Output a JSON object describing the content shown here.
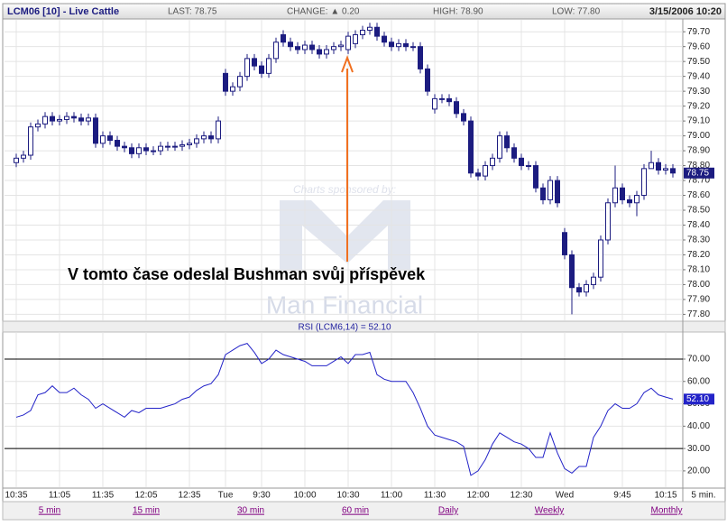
{
  "header": {
    "symbol": "LCM06 [10] - Live Cattle",
    "last": "LAST: 78.75",
    "change": "CHANGE: ▲ 0.20",
    "high": "HIGH: 78.90",
    "low": "LOW: 77.80",
    "datetime": "3/15/2006 10:20"
  },
  "chart_data": [
    {
      "type": "candlestick",
      "color": "#1c1c80",
      "grid": true,
      "last_label": "78.75",
      "annotation": "V tomto čase odeslal Bushman svůj příspěvek",
      "watermark": [
        "Charts sponsored by:",
        "Man Financial"
      ],
      "ylim": [
        77.76,
        79.78
      ],
      "yticks": [
        {
          "value": 77.8,
          "label": "77.80"
        },
        {
          "value": 77.9,
          "label": "77.90"
        },
        {
          "value": 78.0,
          "label": "78.00"
        },
        {
          "value": 78.1,
          "label": "78.10"
        },
        {
          "value": 78.2,
          "label": "78.20"
        },
        {
          "value": 78.3,
          "label": "78.30"
        },
        {
          "value": 78.4,
          "label": "78.40"
        },
        {
          "value": 78.5,
          "label": "78.50"
        },
        {
          "value": 78.6,
          "label": "78.60"
        },
        {
          "value": 78.7,
          "label": "78.70"
        },
        {
          "value": 78.8,
          "label": "78.80"
        },
        {
          "value": 78.9,
          "label": "78.90"
        },
        {
          "value": 79.0,
          "label": "79.00"
        },
        {
          "value": 79.1,
          "label": "79.10"
        },
        {
          "value": 79.2,
          "label": "79.20"
        },
        {
          "value": 79.3,
          "label": "79.30"
        },
        {
          "value": 79.4,
          "label": "79.40"
        },
        {
          "value": 79.5,
          "label": "79.50"
        },
        {
          "value": 79.6,
          "label": "79.60"
        },
        {
          "value": 79.7,
          "label": "79.70"
        }
      ],
      "open": [
        78.82,
        78.85,
        78.87,
        79.06,
        79.08,
        79.13,
        79.1,
        79.11,
        79.13,
        79.12,
        79.1,
        79.12,
        78.95,
        79.0,
        78.97,
        78.93,
        78.92,
        78.88,
        78.92,
        78.9,
        78.9,
        78.93,
        78.93,
        78.93,
        78.94,
        78.95,
        78.98,
        79.0,
        78.98,
        79.42,
        79.3,
        79.33,
        79.4,
        79.52,
        79.47,
        79.42,
        79.52,
        79.68,
        79.63,
        79.6,
        79.58,
        79.61,
        79.58,
        79.55,
        79.58,
        79.6,
        79.58,
        79.62,
        79.68,
        79.71,
        79.73,
        79.67,
        79.63,
        79.6,
        79.62,
        79.6,
        79.6,
        79.45,
        79.18,
        79.25,
        79.25,
        79.23,
        79.15,
        79.1,
        78.75,
        78.73,
        78.8,
        78.85,
        79.0,
        78.92,
        78.85,
        78.8,
        78.8,
        78.65,
        78.57,
        78.7,
        78.35,
        78.2,
        77.98,
        77.95,
        78.0,
        78.05,
        78.3,
        78.55,
        78.65,
        78.57,
        78.55,
        78.6,
        78.78,
        78.82,
        78.77,
        78.78
      ],
      "high": [
        78.88,
        78.9,
        79.09,
        79.11,
        79.16,
        79.16,
        79.14,
        79.16,
        79.16,
        79.15,
        79.15,
        79.15,
        79.03,
        79.03,
        79.0,
        78.96,
        78.95,
        78.95,
        78.95,
        78.93,
        78.96,
        78.96,
        78.96,
        78.97,
        78.98,
        79.01,
        79.03,
        79.03,
        79.13,
        79.45,
        79.36,
        79.43,
        79.55,
        79.55,
        79.5,
        79.55,
        79.66,
        79.71,
        79.66,
        79.63,
        79.64,
        79.64,
        79.61,
        79.61,
        79.63,
        79.64,
        79.7,
        79.71,
        79.74,
        79.76,
        79.76,
        79.7,
        79.66,
        79.65,
        79.65,
        79.63,
        79.63,
        79.48,
        79.28,
        79.28,
        79.28,
        79.26,
        79.18,
        79.13,
        78.78,
        78.83,
        78.88,
        79.03,
        79.03,
        78.95,
        78.88,
        78.83,
        78.83,
        78.68,
        78.73,
        78.73,
        78.38,
        78.23,
        78.01,
        78.03,
        78.08,
        78.33,
        78.58,
        78.8,
        78.68,
        78.6,
        78.63,
        78.81,
        78.9,
        78.85,
        78.81,
        78.81
      ],
      "low": [
        78.79,
        78.82,
        78.84,
        79.03,
        79.05,
        79.07,
        79.07,
        79.08,
        79.09,
        79.07,
        79.07,
        78.92,
        78.92,
        78.94,
        78.9,
        78.89,
        78.85,
        78.85,
        78.87,
        78.87,
        78.87,
        78.9,
        78.9,
        78.9,
        78.91,
        78.92,
        78.95,
        78.95,
        78.95,
        79.27,
        79.27,
        79.3,
        79.37,
        79.44,
        79.39,
        79.39,
        79.49,
        79.6,
        79.57,
        79.55,
        79.55,
        79.55,
        79.52,
        79.52,
        79.55,
        79.57,
        79.55,
        79.59,
        79.65,
        79.68,
        79.64,
        79.6,
        79.57,
        79.57,
        79.57,
        79.57,
        79.42,
        79.27,
        79.15,
        79.22,
        79.2,
        79.12,
        79.07,
        78.72,
        78.7,
        78.7,
        78.77,
        78.82,
        78.89,
        78.82,
        78.77,
        78.77,
        78.62,
        78.54,
        78.54,
        78.52,
        78.17,
        77.8,
        77.92,
        77.92,
        77.97,
        78.02,
        78.27,
        78.52,
        78.54,
        78.52,
        78.46,
        78.57,
        78.79,
        78.74,
        78.74,
        78.72
      ],
      "close": [
        78.85,
        78.87,
        79.06,
        79.08,
        79.13,
        79.1,
        79.11,
        79.13,
        79.12,
        79.1,
        79.12,
        78.95,
        79.0,
        78.97,
        78.93,
        78.92,
        78.88,
        78.92,
        78.9,
        78.9,
        78.93,
        78.93,
        78.93,
        78.94,
        78.95,
        78.98,
        79.0,
        78.98,
        79.1,
        79.3,
        79.33,
        79.4,
        79.52,
        79.47,
        79.42,
        79.52,
        79.63,
        79.63,
        79.6,
        79.58,
        79.61,
        79.58,
        79.55,
        79.58,
        79.6,
        79.61,
        79.67,
        79.68,
        79.71,
        79.73,
        79.67,
        79.63,
        79.6,
        79.62,
        79.6,
        79.6,
        79.45,
        79.3,
        79.25,
        79.25,
        79.23,
        79.15,
        79.1,
        78.75,
        78.73,
        78.8,
        78.85,
        79.0,
        78.92,
        78.85,
        78.8,
        78.8,
        78.65,
        78.57,
        78.7,
        78.55,
        78.2,
        77.98,
        77.95,
        78.0,
        78.05,
        78.3,
        78.55,
        78.65,
        78.57,
        78.55,
        78.6,
        78.78,
        78.82,
        78.77,
        78.78,
        78.75
      ]
    },
    {
      "type": "line",
      "title": "RSI (LCM6,14) = 52.10",
      "color": "#2323c8",
      "last_label": "52.10",
      "grid": true,
      "reference_lines": [
        30,
        70
      ],
      "ylim": [
        12.7,
        82.1
      ],
      "yticks": [
        {
          "value": 20,
          "label": "20.00"
        },
        {
          "value": 30,
          "label": "30.00"
        },
        {
          "value": 40,
          "label": "40.00"
        },
        {
          "value": 50,
          "label": "50.00"
        },
        {
          "value": 60,
          "label": "60.00"
        },
        {
          "value": 70,
          "label": "70.00"
        }
      ],
      "x_unit": "5 min.",
      "categories": [
        "10:35",
        null,
        null,
        null,
        null,
        null,
        "11:05",
        null,
        null,
        null,
        null,
        null,
        "11:35",
        null,
        null,
        null,
        null,
        null,
        "12:05",
        null,
        null,
        null,
        null,
        null,
        "12:35",
        null,
        null,
        null,
        null,
        "Tue",
        null,
        null,
        null,
        null,
        "9:30",
        null,
        null,
        null,
        null,
        null,
        "10:00",
        null,
        null,
        null,
        null,
        null,
        "10:30",
        null,
        null,
        null,
        null,
        null,
        "11:00",
        null,
        null,
        null,
        null,
        null,
        "11:30",
        null,
        null,
        null,
        null,
        null,
        "12:00",
        null,
        null,
        null,
        null,
        null,
        "12:30",
        null,
        null,
        null,
        null,
        null,
        "Wed",
        null,
        null,
        null,
        null,
        null,
        null,
        null,
        "9:45",
        null,
        null,
        null,
        null,
        null,
        "10:15",
        null
      ],
      "values": [
        44,
        45,
        47,
        54,
        55,
        58,
        55,
        55,
        57,
        54,
        52,
        48,
        50,
        48,
        46,
        44,
        47,
        46,
        48,
        48,
        48,
        49,
        50,
        52,
        53,
        56,
        58,
        59,
        63,
        72,
        74,
        76,
        77,
        73,
        68,
        70,
        74,
        72,
        71,
        70,
        69,
        67,
        67,
        67,
        69,
        71,
        68,
        72,
        72,
        73,
        63,
        61,
        60,
        60,
        60,
        55,
        48,
        40,
        36,
        35,
        34,
        33,
        31,
        18,
        20,
        25,
        32,
        37,
        35,
        33,
        32,
        30,
        26,
        26,
        37,
        28,
        21,
        19,
        22,
        22,
        35,
        40,
        47,
        50,
        48,
        48,
        50,
        55,
        57,
        54,
        53,
        52.1
      ]
    }
  ],
  "links": [
    "5 min",
    "15 min",
    "30 min",
    "60 min",
    "Daily",
    "Weekly",
    "Monthly"
  ]
}
